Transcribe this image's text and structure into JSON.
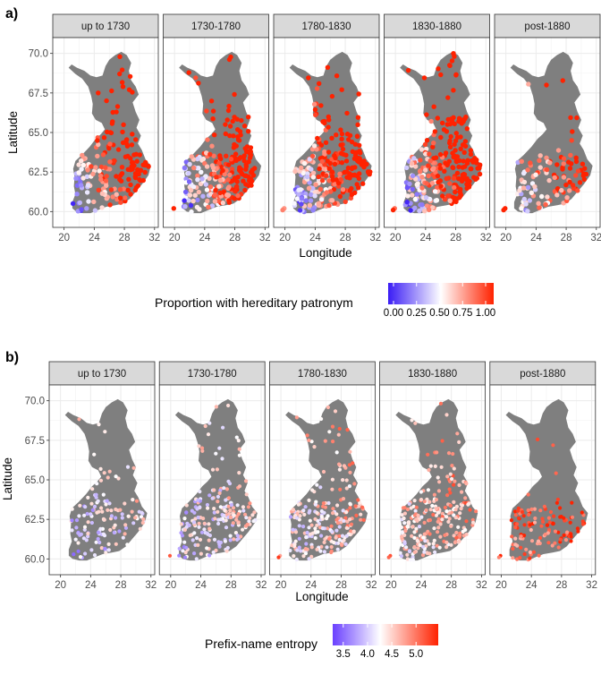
{
  "figure": {
    "panel_a": {
      "label": "a)",
      "facets": [
        "up to 1730",
        "1730-1780",
        "1780-1830",
        "1830-1880",
        "post-1880"
      ],
      "xlabel": "Longitude",
      "ylabel": "Latitude",
      "x_ticks": [
        "20",
        "24",
        "28",
        "32"
      ],
      "y_ticks": [
        "70.0",
        "67.5",
        "65.0",
        "62.5",
        "60.0"
      ],
      "legend": {
        "title": "Proportion with hereditary patronym",
        "ticks": [
          "0.00",
          "0.25",
          "0.50",
          "0.75",
          "1.00"
        ],
        "colors": [
          "#3a1cf5",
          "#ffffff",
          "#ff2200"
        ]
      }
    },
    "panel_b": {
      "label": "b)",
      "facets": [
        "up to 1730",
        "1730-1780",
        "1780-1830",
        "1830-1880",
        "post-1880"
      ],
      "xlabel": "Longitude",
      "ylabel": "Latitude",
      "x_ticks": [
        "20",
        "24",
        "28",
        "32"
      ],
      "y_ticks": [
        "70.0",
        "67.5",
        "65.0",
        "62.5",
        "60.0"
      ],
      "legend": {
        "title": "Prefix-name entropy",
        "ticks": [
          "3.5",
          "4.0",
          "4.5",
          "5.0"
        ],
        "colors": [
          "#6a40ff",
          "#ffffff",
          "#ff2200"
        ]
      }
    }
  },
  "chart_data": [
    {
      "type": "scatter",
      "xlabel": "Longitude",
      "ylabel": "Latitude",
      "xlim": [
        18.5,
        32.5
      ],
      "ylim": [
        59,
        71
      ],
      "facets": [
        "up to 1730",
        "1730-1780",
        "1780-1830",
        "1830-1880",
        "post-1880"
      ],
      "color_variable": "Proportion with hereditary patronym",
      "color_range": [
        0,
        1
      ],
      "pattern": "blue (low) in south-west Finland, red (high) in east and north; post-1880 sparse"
    },
    {
      "type": "scatter",
      "xlabel": "Longitude",
      "ylabel": "Latitude",
      "xlim": [
        18.5,
        32.5
      ],
      "ylim": [
        59,
        71
      ],
      "facets": [
        "up to 1730",
        "1730-1780",
        "1780-1830",
        "1830-1880",
        "post-1880"
      ],
      "color_variable": "Prefix-name entropy",
      "color_range": [
        3.2,
        5.3
      ],
      "pattern": "lower entropy (purple) early in south-west, higher (red) in post-1880"
    }
  ]
}
